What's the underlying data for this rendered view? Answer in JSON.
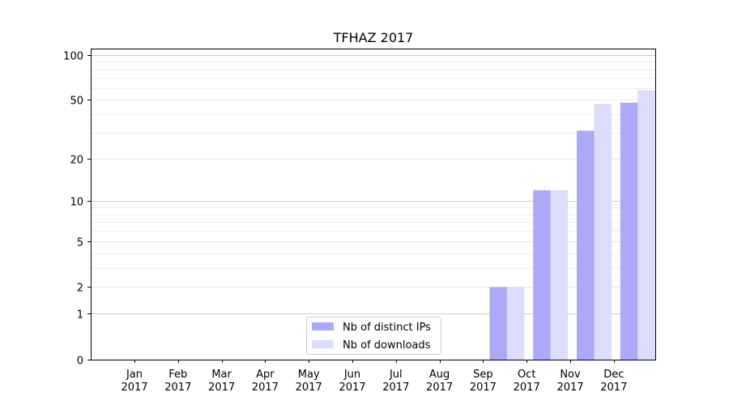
{
  "chart_data": {
    "type": "bar",
    "title": "TFHAZ 2017",
    "xlabel": "",
    "ylabel": "",
    "yscale": "log1p",
    "ylim": [
      0,
      110
    ],
    "yticks": [
      0,
      1,
      2,
      5,
      10,
      20,
      50,
      100
    ],
    "ytick_labels": [
      "0",
      "1",
      "2",
      "5",
      "10",
      "20",
      "50",
      "100"
    ],
    "grid": "y",
    "legend_position": "bottom-center",
    "categories": [
      "Jan\n2017",
      "Feb\n2017",
      "Mar\n2017",
      "Apr\n2017",
      "May\n2017",
      "Jun\n2017",
      "Jul\n2017",
      "Aug\n2017",
      "Sep\n2017",
      "Oct\n2017",
      "Nov\n2017",
      "Dec\n2017"
    ],
    "category_lines": [
      [
        "Jan",
        "2017"
      ],
      [
        "Feb",
        "2017"
      ],
      [
        "Mar",
        "2017"
      ],
      [
        "Apr",
        "2017"
      ],
      [
        "May",
        "2017"
      ],
      [
        "Jun",
        "2017"
      ],
      [
        "Jul",
        "2017"
      ],
      [
        "Aug",
        "2017"
      ],
      [
        "Sep",
        "2017"
      ],
      [
        "Oct",
        "2017"
      ],
      [
        "Nov",
        "2017"
      ],
      [
        "Dec",
        "2017"
      ]
    ],
    "series": [
      {
        "name": "Nb of distinct IPs",
        "color": "#aaaaf8",
        "values": [
          0,
          0,
          0,
          0,
          0,
          0,
          0,
          0,
          2,
          12,
          31,
          48
        ]
      },
      {
        "name": "Nb of downloads",
        "color": "#dcdcfc",
        "values": [
          0,
          0,
          0,
          0,
          0,
          0,
          0,
          0,
          2,
          12,
          47,
          58
        ]
      }
    ]
  }
}
